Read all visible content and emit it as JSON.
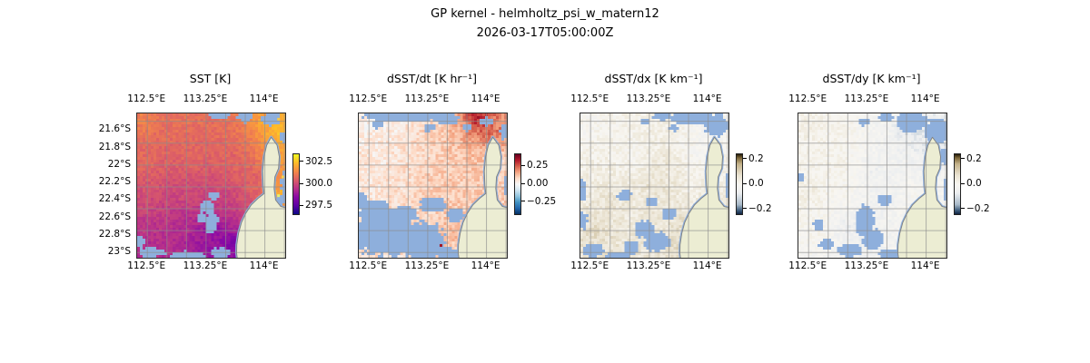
{
  "figure": {
    "title": "GP kernel - helmholtz_psi_w_matern12",
    "subtitle": "2026-03-17T05:00:00Z",
    "background": "#ffffff"
  },
  "colors": {
    "cloud_mask": "#8eafdc",
    "land": "#ecedd3",
    "coast": "#808080",
    "grid": "#8c8c8c",
    "spine": "#2b2b2b",
    "text": "#000000"
  },
  "geo": {
    "lon_min": 112.37,
    "lon_max": 114.26,
    "lat_min": 21.41,
    "lat_max": 23.06,
    "grid_lons": [
      112.5,
      112.75,
      113.0,
      113.25,
      113.5,
      113.75,
      114.0,
      114.25
    ],
    "grid_lats": [
      21.5,
      21.75,
      22.0,
      22.25,
      22.5,
      22.75,
      23.0
    ],
    "land_polygon": [
      [
        0.905,
        0.165
      ],
      [
        0.875,
        0.22
      ],
      [
        0.857,
        0.3
      ],
      [
        0.848,
        0.4
      ],
      [
        0.852,
        0.5
      ],
      [
        0.858,
        0.555
      ],
      [
        0.815,
        0.59
      ],
      [
        0.77,
        0.635
      ],
      [
        0.735,
        0.69
      ],
      [
        0.705,
        0.755
      ],
      [
        0.685,
        0.83
      ],
      [
        0.673,
        0.91
      ],
      [
        0.672,
        0.97
      ],
      [
        0.68,
        1.03
      ],
      [
        1.03,
        1.03
      ],
      [
        1.03,
        0.66
      ],
      [
        0.97,
        0.645
      ],
      [
        0.935,
        0.6
      ],
      [
        0.925,
        0.52
      ],
      [
        0.93,
        0.44
      ],
      [
        0.955,
        0.38
      ],
      [
        0.96,
        0.3
      ],
      [
        0.945,
        0.22
      ]
    ]
  },
  "axes": {
    "xticks": [
      {
        "label": "112.5°E",
        "lon": 112.5
      },
      {
        "label": "113.25°E",
        "lon": 113.25
      },
      {
        "label": "114°E",
        "lon": 114.0
      }
    ],
    "yticks": [
      {
        "label": "21.6°S",
        "lat": 21.6
      },
      {
        "label": "21.8°S",
        "lat": 21.8
      },
      {
        "label": "22°S",
        "lat": 22.0
      },
      {
        "label": "22.2°S",
        "lat": 22.2
      },
      {
        "label": "22.4°S",
        "lat": 22.4
      },
      {
        "label": "22.6°S",
        "lat": 22.6
      },
      {
        "label": "22.8°S",
        "lat": 22.8
      },
      {
        "label": "23°S",
        "lat": 23.0
      }
    ]
  },
  "chart_data": [
    {
      "type": "heatmap",
      "title": "SST [K]",
      "units": "K",
      "colorbar": {
        "vmin": 296.6,
        "vmax": 303.4,
        "ticks": [
          {
            "v": 302.5,
            "label": "302.5"
          },
          {
            "v": 300.0,
            "label": "300.0"
          },
          {
            "v": 297.5,
            "label": "297.5"
          }
        ],
        "stops": [
          [
            0,
            "#0d0887"
          ],
          [
            0.14,
            "#5b02a3"
          ],
          [
            0.29,
            "#8b0aa5"
          ],
          [
            0.43,
            "#b93289"
          ],
          [
            0.57,
            "#db5c68"
          ],
          [
            0.71,
            "#f48849"
          ],
          [
            0.86,
            "#febc2a"
          ],
          [
            1,
            "#f0f921"
          ]
        ]
      },
      "field": {
        "seed": 7,
        "noise": 0.28,
        "points": [
          [
            0.02,
            0.05,
            301.4
          ],
          [
            0.3,
            0.05,
            301.0
          ],
          [
            0.6,
            0.04,
            300.9
          ],
          [
            0.88,
            0.03,
            302.2
          ],
          [
            0.97,
            0.12,
            302.9
          ],
          [
            0.96,
            0.3,
            302.2
          ],
          [
            0.96,
            0.55,
            302.8
          ],
          [
            0.05,
            0.35,
            300.9
          ],
          [
            0.35,
            0.3,
            300.8
          ],
          [
            0.65,
            0.3,
            300.6
          ],
          [
            0.82,
            0.45,
            300.4
          ],
          [
            0.05,
            0.6,
            300.2
          ],
          [
            0.35,
            0.55,
            300.1
          ],
          [
            0.6,
            0.6,
            299.9
          ],
          [
            0.1,
            0.8,
            299.5
          ],
          [
            0.3,
            0.78,
            299.3
          ],
          [
            0.5,
            0.8,
            298.4
          ],
          [
            0.66,
            0.9,
            297.7
          ],
          [
            0.45,
            0.95,
            298.6
          ],
          [
            0.08,
            0.95,
            299.2
          ],
          [
            0.8,
            0.7,
            299.9
          ]
        ]
      },
      "mask_blobs": [
        [
          0.55,
          0.01,
          0.07,
          0.03
        ],
        [
          0.73,
          0.03,
          0.05,
          0.035
        ],
        [
          0.9,
          0.04,
          0.06,
          0.045
        ],
        [
          0.99,
          0.17,
          0.025,
          0.04
        ],
        [
          0.52,
          0.57,
          0.035,
          0.03
        ],
        [
          0.47,
          0.65,
          0.05,
          0.045
        ],
        [
          0.5,
          0.76,
          0.045,
          0.075
        ],
        [
          0.43,
          0.72,
          0.03,
          0.03
        ],
        [
          0.1,
          0.965,
          0.09,
          0.035
        ],
        [
          0.33,
          0.985,
          0.12,
          0.03
        ],
        [
          0.56,
          0.965,
          0.07,
          0.035
        ],
        [
          0.02,
          0.89,
          0.03,
          0.045
        ],
        [
          0.995,
          0.5,
          0.025,
          0.09
        ],
        [
          0.965,
          0.6,
          0.03,
          0.04
        ]
      ],
      "accents": [
        [
          0.955,
          0.57,
          "#e9ef6d"
        ],
        [
          0.985,
          0.44,
          "#f6d553"
        ],
        [
          0.975,
          0.22,
          "#f3a63f"
        ],
        [
          0.955,
          0.04,
          "#f2c84b"
        ]
      ]
    },
    {
      "type": "heatmap",
      "title": "dSST/dt [K hr⁻¹]",
      "units": "K hr⁻¹",
      "colorbar": {
        "vmin": -0.42,
        "vmax": 0.42,
        "ticks": [
          {
            "v": 0.25,
            "label": "0.25"
          },
          {
            "v": 0.0,
            "label": "0.00"
          },
          {
            "v": -0.25,
            "label": "−0.25"
          }
        ],
        "stops": [
          [
            0,
            "#053061"
          ],
          [
            0.1,
            "#2166ac"
          ],
          [
            0.2,
            "#4393c3"
          ],
          [
            0.3,
            "#92c5de"
          ],
          [
            0.4,
            "#d1e5f0"
          ],
          [
            0.5,
            "#f7f7f7"
          ],
          [
            0.6,
            "#fddbc7"
          ],
          [
            0.7,
            "#f4a582"
          ],
          [
            0.8,
            "#d6604d"
          ],
          [
            0.9,
            "#b2182b"
          ],
          [
            1,
            "#67001f"
          ]
        ]
      },
      "field": {
        "seed": 11,
        "noise": 0.045,
        "points": [
          [
            0.05,
            0.05,
            0.0
          ],
          [
            0.25,
            0.1,
            0.02
          ],
          [
            0.5,
            0.05,
            0.06
          ],
          [
            0.66,
            0.08,
            0.12
          ],
          [
            0.79,
            0.02,
            0.46
          ],
          [
            0.88,
            0.1,
            0.28
          ],
          [
            0.97,
            0.06,
            0.18
          ],
          [
            0.15,
            0.3,
            0.03
          ],
          [
            0.4,
            0.3,
            0.05
          ],
          [
            0.6,
            0.3,
            0.1
          ],
          [
            0.78,
            0.3,
            0.12
          ],
          [
            0.95,
            0.35,
            0.05
          ],
          [
            0.05,
            0.55,
            0.04
          ],
          [
            0.3,
            0.5,
            0.06
          ],
          [
            0.5,
            0.5,
            0.12
          ],
          [
            0.68,
            0.5,
            0.1
          ],
          [
            0.2,
            0.75,
            0.06
          ],
          [
            0.45,
            0.72,
            0.08
          ],
          [
            0.62,
            0.8,
            0.16
          ],
          [
            0.75,
            0.88,
            0.1
          ],
          [
            0.4,
            0.95,
            0.06
          ],
          [
            0.1,
            0.92,
            0.05
          ]
        ]
      },
      "mask_blobs": [
        [
          0.3,
          0.02,
          0.27,
          0.04
        ],
        [
          0.6,
          0.04,
          0.08,
          0.04
        ],
        [
          0.13,
          0.08,
          0.04,
          0.025
        ],
        [
          0.48,
          0.1,
          0.04,
          0.025
        ],
        [
          0.86,
          0.06,
          0.05,
          0.03
        ],
        [
          0.985,
          0.13,
          0.03,
          0.05
        ],
        [
          0.73,
          0.1,
          0.03,
          0.03
        ],
        [
          0.18,
          0.82,
          0.22,
          0.17
        ],
        [
          0.42,
          0.88,
          0.16,
          0.13
        ],
        [
          0.1,
          0.67,
          0.1,
          0.07
        ],
        [
          0.3,
          0.7,
          0.09,
          0.06
        ],
        [
          0.5,
          0.63,
          0.09,
          0.05
        ],
        [
          0.65,
          0.7,
          0.06,
          0.05
        ],
        [
          0.02,
          0.6,
          0.04,
          0.06
        ],
        [
          0.62,
          0.97,
          0.1,
          0.04
        ],
        [
          0.995,
          0.5,
          0.02,
          0.08
        ]
      ],
      "accents": [
        [
          0.555,
          0.915,
          "#a41726"
        ]
      ]
    },
    {
      "type": "heatmap",
      "title": "dSST/dx [K km⁻¹]",
      "units": "K km⁻¹",
      "colorbar": {
        "vmin": -0.24,
        "vmax": 0.24,
        "ticks": [
          {
            "v": 0.2,
            "label": "0.2"
          },
          {
            "v": 0.0,
            "label": "0.0"
          },
          {
            "v": -0.2,
            "label": "−0.2"
          }
        ],
        "stops": [
          [
            0,
            "#0f2240"
          ],
          [
            0.06,
            "#3c5a7a"
          ],
          [
            0.16,
            "#a9bac9"
          ],
          [
            0.35,
            "#eceef0"
          ],
          [
            0.5,
            "#f8f6f1"
          ],
          [
            0.65,
            "#eae3d2"
          ],
          [
            0.84,
            "#c3b189"
          ],
          [
            0.94,
            "#7a6436"
          ],
          [
            1,
            "#241b09"
          ]
        ]
      },
      "field": {
        "seed": 23,
        "noise": 0.035,
        "points": [
          [
            0.05,
            0.1,
            -0.02
          ],
          [
            0.3,
            0.08,
            0.01
          ],
          [
            0.6,
            0.1,
            0.03
          ],
          [
            0.85,
            0.12,
            -0.05
          ],
          [
            0.1,
            0.3,
            0.02
          ],
          [
            0.35,
            0.3,
            -0.02
          ],
          [
            0.58,
            0.35,
            0.07
          ],
          [
            0.8,
            0.3,
            -0.03
          ],
          [
            0.05,
            0.5,
            0.04
          ],
          [
            0.3,
            0.55,
            0.05
          ],
          [
            0.52,
            0.5,
            0.08
          ],
          [
            0.75,
            0.55,
            0.02
          ],
          [
            0.12,
            0.82,
            0.09
          ],
          [
            0.35,
            0.75,
            0.04
          ],
          [
            0.55,
            0.72,
            0.05
          ],
          [
            0.72,
            0.8,
            0.09
          ],
          [
            0.83,
            0.92,
            0.17
          ],
          [
            0.45,
            0.92,
            0.05
          ],
          [
            0.2,
            0.6,
            0.06
          ]
        ]
      },
      "mask_blobs": [
        [
          0.74,
          0.03,
          0.13,
          0.05
        ],
        [
          0.92,
          0.08,
          0.09,
          0.075
        ],
        [
          0.55,
          0.02,
          0.07,
          0.03
        ],
        [
          0.44,
          0.06,
          0.035,
          0.022
        ],
        [
          0.63,
          0.1,
          0.03,
          0.025
        ],
        [
          0.01,
          0.53,
          0.025,
          0.09
        ],
        [
          0.02,
          0.74,
          0.03,
          0.06
        ],
        [
          0.09,
          0.95,
          0.07,
          0.045
        ],
        [
          0.3,
          0.57,
          0.05,
          0.04
        ],
        [
          0.43,
          0.8,
          0.07,
          0.06
        ],
        [
          0.52,
          0.89,
          0.09,
          0.07
        ],
        [
          0.34,
          0.93,
          0.055,
          0.05
        ],
        [
          0.6,
          0.7,
          0.05,
          0.04
        ],
        [
          0.48,
          0.61,
          0.04,
          0.03
        ],
        [
          0.995,
          0.5,
          0.02,
          0.08
        ],
        [
          0.25,
          0.985,
          0.08,
          0.025
        ]
      ],
      "accents": [
        [
          0.825,
          0.935,
          "#6b5329"
        ],
        [
          0.845,
          0.985,
          "#57441f"
        ],
        [
          0.8,
          0.875,
          "#8a7344"
        ]
      ]
    },
    {
      "type": "heatmap",
      "title": "dSST/dy [K km⁻¹]",
      "units": "K km⁻¹",
      "colorbar": {
        "vmin": -0.24,
        "vmax": 0.24,
        "ticks": [
          {
            "v": 0.2,
            "label": "0.2"
          },
          {
            "v": 0.0,
            "label": "0.0"
          },
          {
            "v": -0.2,
            "label": "−0.2"
          }
        ],
        "stops": [
          [
            0,
            "#0f2240"
          ],
          [
            0.06,
            "#3c5a7a"
          ],
          [
            0.16,
            "#a9bac9"
          ],
          [
            0.35,
            "#eceef0"
          ],
          [
            0.5,
            "#f8f6f1"
          ],
          [
            0.65,
            "#eae3d2"
          ],
          [
            0.84,
            "#c3b189"
          ],
          [
            0.94,
            "#7a6436"
          ],
          [
            1,
            "#241b09"
          ]
        ]
      },
      "field": {
        "seed": 42,
        "noise": 0.03,
        "points": [
          [
            0.08,
            0.1,
            0.04
          ],
          [
            0.3,
            0.08,
            0.02
          ],
          [
            0.55,
            0.06,
            -0.03
          ],
          [
            0.75,
            0.1,
            -0.11
          ],
          [
            0.92,
            0.2,
            -0.09
          ],
          [
            0.1,
            0.3,
            0.02
          ],
          [
            0.3,
            0.35,
            0.03
          ],
          [
            0.5,
            0.4,
            -0.07
          ],
          [
            0.7,
            0.38,
            -0.04
          ],
          [
            0.08,
            0.55,
            0.05
          ],
          [
            0.3,
            0.55,
            0.01
          ],
          [
            0.55,
            0.58,
            -0.06
          ],
          [
            0.8,
            0.6,
            0.01
          ],
          [
            0.15,
            0.8,
            0.02
          ],
          [
            0.32,
            0.78,
            -0.08
          ],
          [
            0.5,
            0.72,
            -0.05
          ],
          [
            0.68,
            0.85,
            -0.04
          ],
          [
            0.45,
            0.92,
            -0.06
          ],
          [
            0.85,
            0.92,
            0.03
          ]
        ]
      },
      "mask_blobs": [
        [
          0.77,
          0.06,
          0.11,
          0.065
        ],
        [
          0.93,
          0.13,
          0.08,
          0.09
        ],
        [
          0.59,
          0.03,
          0.055,
          0.03
        ],
        [
          0.44,
          0.06,
          0.04,
          0.025
        ],
        [
          0.985,
          0.3,
          0.025,
          0.06
        ],
        [
          0.45,
          0.74,
          0.065,
          0.1
        ],
        [
          0.5,
          0.87,
          0.075,
          0.075
        ],
        [
          0.34,
          0.95,
          0.085,
          0.045
        ],
        [
          0.19,
          0.91,
          0.05,
          0.04
        ],
        [
          0.14,
          0.77,
          0.04,
          0.035
        ],
        [
          0.58,
          0.6,
          0.045,
          0.04
        ],
        [
          0.02,
          0.44,
          0.022,
          0.035
        ],
        [
          0.995,
          0.52,
          0.02,
          0.07
        ],
        [
          0.62,
          0.975,
          0.08,
          0.03
        ]
      ],
      "accents": []
    }
  ]
}
